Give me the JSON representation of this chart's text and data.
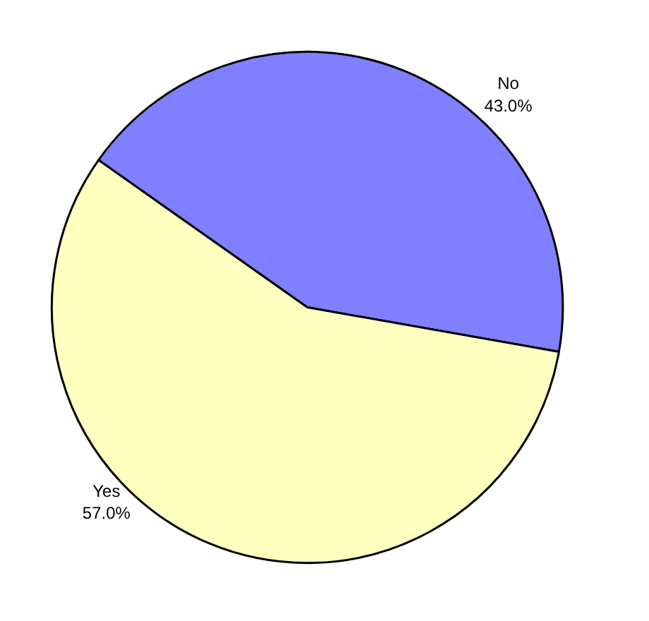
{
  "chart_data": {
    "type": "pie",
    "categories": [
      "No",
      "Yes"
    ],
    "values": [
      43,
      57
    ],
    "colors": [
      "#8080ff",
      "#ffffc0"
    ],
    "value_labels": [
      "43.0%",
      "57.0%"
    ]
  }
}
